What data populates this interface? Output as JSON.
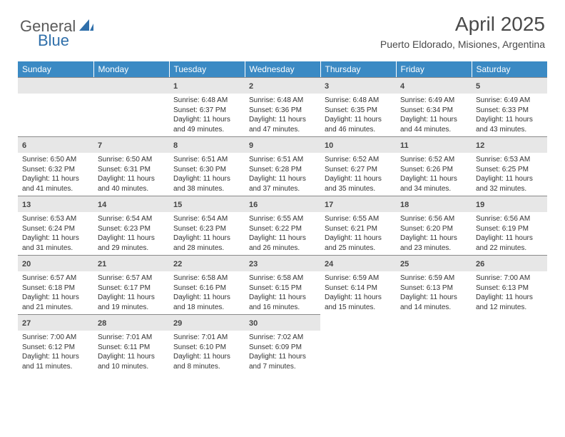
{
  "brand": {
    "general": "General",
    "blue": "Blue"
  },
  "title": "April 2025",
  "location": "Puerto Eldorado, Misiones, Argentina",
  "colors": {
    "header_bg": "#3b8ac4",
    "header_text": "#ffffff",
    "daynum_bg": "#e7e7e7",
    "daynum_border": "#8a8a8a",
    "text": "#333333",
    "brand_gray": "#5a5a5a",
    "brand_blue": "#2f6faa"
  },
  "weekdays": [
    "Sunday",
    "Monday",
    "Tuesday",
    "Wednesday",
    "Thursday",
    "Friday",
    "Saturday"
  ],
  "weeks": [
    [
      null,
      null,
      {
        "num": "1",
        "sunrise": "Sunrise: 6:48 AM",
        "sunset": "Sunset: 6:37 PM",
        "daylight": "Daylight: 11 hours and 49 minutes."
      },
      {
        "num": "2",
        "sunrise": "Sunrise: 6:48 AM",
        "sunset": "Sunset: 6:36 PM",
        "daylight": "Daylight: 11 hours and 47 minutes."
      },
      {
        "num": "3",
        "sunrise": "Sunrise: 6:48 AM",
        "sunset": "Sunset: 6:35 PM",
        "daylight": "Daylight: 11 hours and 46 minutes."
      },
      {
        "num": "4",
        "sunrise": "Sunrise: 6:49 AM",
        "sunset": "Sunset: 6:34 PM",
        "daylight": "Daylight: 11 hours and 44 minutes."
      },
      {
        "num": "5",
        "sunrise": "Sunrise: 6:49 AM",
        "sunset": "Sunset: 6:33 PM",
        "daylight": "Daylight: 11 hours and 43 minutes."
      }
    ],
    [
      {
        "num": "6",
        "sunrise": "Sunrise: 6:50 AM",
        "sunset": "Sunset: 6:32 PM",
        "daylight": "Daylight: 11 hours and 41 minutes."
      },
      {
        "num": "7",
        "sunrise": "Sunrise: 6:50 AM",
        "sunset": "Sunset: 6:31 PM",
        "daylight": "Daylight: 11 hours and 40 minutes."
      },
      {
        "num": "8",
        "sunrise": "Sunrise: 6:51 AM",
        "sunset": "Sunset: 6:30 PM",
        "daylight": "Daylight: 11 hours and 38 minutes."
      },
      {
        "num": "9",
        "sunrise": "Sunrise: 6:51 AM",
        "sunset": "Sunset: 6:28 PM",
        "daylight": "Daylight: 11 hours and 37 minutes."
      },
      {
        "num": "10",
        "sunrise": "Sunrise: 6:52 AM",
        "sunset": "Sunset: 6:27 PM",
        "daylight": "Daylight: 11 hours and 35 minutes."
      },
      {
        "num": "11",
        "sunrise": "Sunrise: 6:52 AM",
        "sunset": "Sunset: 6:26 PM",
        "daylight": "Daylight: 11 hours and 34 minutes."
      },
      {
        "num": "12",
        "sunrise": "Sunrise: 6:53 AM",
        "sunset": "Sunset: 6:25 PM",
        "daylight": "Daylight: 11 hours and 32 minutes."
      }
    ],
    [
      {
        "num": "13",
        "sunrise": "Sunrise: 6:53 AM",
        "sunset": "Sunset: 6:24 PM",
        "daylight": "Daylight: 11 hours and 31 minutes."
      },
      {
        "num": "14",
        "sunrise": "Sunrise: 6:54 AM",
        "sunset": "Sunset: 6:23 PM",
        "daylight": "Daylight: 11 hours and 29 minutes."
      },
      {
        "num": "15",
        "sunrise": "Sunrise: 6:54 AM",
        "sunset": "Sunset: 6:23 PM",
        "daylight": "Daylight: 11 hours and 28 minutes."
      },
      {
        "num": "16",
        "sunrise": "Sunrise: 6:55 AM",
        "sunset": "Sunset: 6:22 PM",
        "daylight": "Daylight: 11 hours and 26 minutes."
      },
      {
        "num": "17",
        "sunrise": "Sunrise: 6:55 AM",
        "sunset": "Sunset: 6:21 PM",
        "daylight": "Daylight: 11 hours and 25 minutes."
      },
      {
        "num": "18",
        "sunrise": "Sunrise: 6:56 AM",
        "sunset": "Sunset: 6:20 PM",
        "daylight": "Daylight: 11 hours and 23 minutes."
      },
      {
        "num": "19",
        "sunrise": "Sunrise: 6:56 AM",
        "sunset": "Sunset: 6:19 PM",
        "daylight": "Daylight: 11 hours and 22 minutes."
      }
    ],
    [
      {
        "num": "20",
        "sunrise": "Sunrise: 6:57 AM",
        "sunset": "Sunset: 6:18 PM",
        "daylight": "Daylight: 11 hours and 21 minutes."
      },
      {
        "num": "21",
        "sunrise": "Sunrise: 6:57 AM",
        "sunset": "Sunset: 6:17 PM",
        "daylight": "Daylight: 11 hours and 19 minutes."
      },
      {
        "num": "22",
        "sunrise": "Sunrise: 6:58 AM",
        "sunset": "Sunset: 6:16 PM",
        "daylight": "Daylight: 11 hours and 18 minutes."
      },
      {
        "num": "23",
        "sunrise": "Sunrise: 6:58 AM",
        "sunset": "Sunset: 6:15 PM",
        "daylight": "Daylight: 11 hours and 16 minutes."
      },
      {
        "num": "24",
        "sunrise": "Sunrise: 6:59 AM",
        "sunset": "Sunset: 6:14 PM",
        "daylight": "Daylight: 11 hours and 15 minutes."
      },
      {
        "num": "25",
        "sunrise": "Sunrise: 6:59 AM",
        "sunset": "Sunset: 6:13 PM",
        "daylight": "Daylight: 11 hours and 14 minutes."
      },
      {
        "num": "26",
        "sunrise": "Sunrise: 7:00 AM",
        "sunset": "Sunset: 6:13 PM",
        "daylight": "Daylight: 11 hours and 12 minutes."
      }
    ],
    [
      {
        "num": "27",
        "sunrise": "Sunrise: 7:00 AM",
        "sunset": "Sunset: 6:12 PM",
        "daylight": "Daylight: 11 hours and 11 minutes."
      },
      {
        "num": "28",
        "sunrise": "Sunrise: 7:01 AM",
        "sunset": "Sunset: 6:11 PM",
        "daylight": "Daylight: 11 hours and 10 minutes."
      },
      {
        "num": "29",
        "sunrise": "Sunrise: 7:01 AM",
        "sunset": "Sunset: 6:10 PM",
        "daylight": "Daylight: 11 hours and 8 minutes."
      },
      {
        "num": "30",
        "sunrise": "Sunrise: 7:02 AM",
        "sunset": "Sunset: 6:09 PM",
        "daylight": "Daylight: 11 hours and 7 minutes."
      },
      null,
      null,
      null
    ]
  ]
}
